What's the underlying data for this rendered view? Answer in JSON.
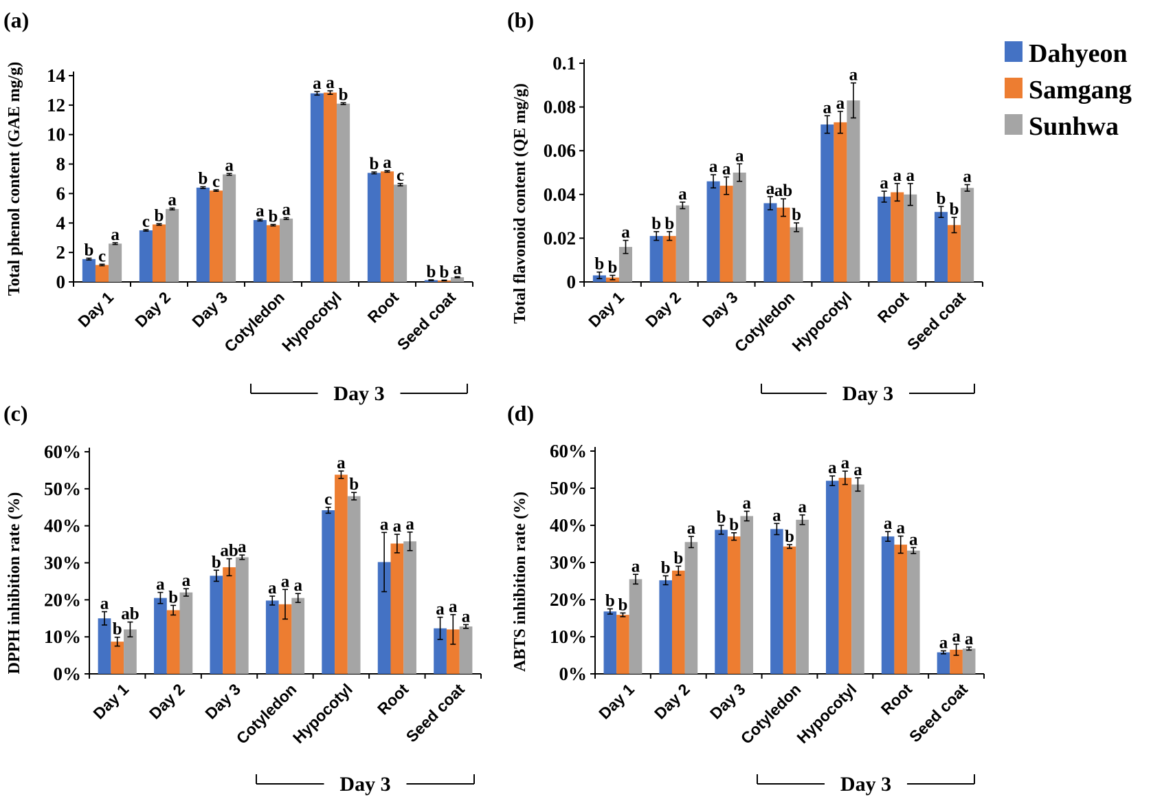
{
  "legend": [
    {
      "name": "Dahyeon",
      "color": "#4472C4"
    },
    {
      "name": "Samgang",
      "color": "#ED7D31"
    },
    {
      "name": "Sunhwa",
      "color": "#A5A5A5"
    }
  ],
  "chart_data": [
    {
      "panel": "(a)",
      "type": "bar",
      "ylabel": "Total phenol content (GAE mg/g)",
      "ylim": [
        0,
        14
      ],
      "yticks": [
        "0",
        "2",
        "4",
        "6",
        "8",
        "10",
        "12",
        "14"
      ],
      "categories": [
        "Day 1",
        "Day 2",
        "Day 3",
        "Cotyledon",
        "Hypocotyl",
        "Root",
        "Seed coat"
      ],
      "group_label": "Day 3",
      "series": [
        {
          "name": "Dahyeon",
          "values": [
            1.55,
            3.5,
            6.4,
            4.2,
            12.8,
            7.4,
            0.12
          ],
          "errors": [
            0.06,
            0.05,
            0.06,
            0.06,
            0.12,
            0.06,
            0.02
          ],
          "letters": [
            "b",
            "c",
            "b",
            "a",
            "a",
            "b",
            "b"
          ]
        },
        {
          "name": "Samgang",
          "values": [
            1.15,
            3.9,
            6.2,
            3.85,
            12.85,
            7.5,
            0.1
          ],
          "errors": [
            0.05,
            0.05,
            0.05,
            0.05,
            0.12,
            0.05,
            0.02
          ],
          "letters": [
            "c",
            "b",
            "c",
            "b",
            "a",
            "a",
            "b"
          ]
        },
        {
          "name": "Sunhwa",
          "values": [
            2.6,
            4.95,
            7.3,
            4.3,
            12.1,
            6.6,
            0.32
          ],
          "errors": [
            0.06,
            0.06,
            0.06,
            0.06,
            0.06,
            0.08,
            0.03
          ],
          "letters": [
            "a",
            "a",
            "a",
            "a",
            "b",
            "c",
            "a"
          ]
        }
      ]
    },
    {
      "panel": "(b)",
      "type": "bar",
      "ylabel": "Total flavonoid content (QE mg/g)",
      "ylim": [
        0,
        0.1
      ],
      "yticks": [
        "0",
        "0.02",
        "0.04",
        "0.06",
        "0.08",
        "0.1"
      ],
      "categories": [
        "Day 1",
        "Day 2",
        "Day 3",
        "Cotyledon",
        "Hypocotyl",
        "Root",
        "Seed coat"
      ],
      "group_label": "Day 3",
      "series": [
        {
          "name": "Dahyeon",
          "values": [
            0.003,
            0.021,
            0.046,
            0.036,
            0.072,
            0.039,
            0.032
          ],
          "errors": [
            0.0015,
            0.002,
            0.003,
            0.003,
            0.004,
            0.0025,
            0.0025
          ],
          "letters": [
            "b",
            "b",
            "a",
            "a",
            "a",
            "a",
            "b"
          ]
        },
        {
          "name": "Samgang",
          "values": [
            0.002,
            0.021,
            0.044,
            0.034,
            0.073,
            0.041,
            0.026
          ],
          "errors": [
            0.001,
            0.002,
            0.004,
            0.004,
            0.005,
            0.004,
            0.0035
          ],
          "letters": [
            "b",
            "b",
            "a",
            "ab",
            "a",
            "a",
            "b"
          ]
        },
        {
          "name": "Sunhwa",
          "values": [
            0.016,
            0.035,
            0.05,
            0.025,
            0.083,
            0.04,
            0.043
          ],
          "errors": [
            0.003,
            0.0015,
            0.004,
            0.002,
            0.008,
            0.005,
            0.0015
          ],
          "letters": [
            "a",
            "a",
            "a",
            "b",
            "a",
            "a",
            "a"
          ]
        }
      ]
    },
    {
      "panel": "(c)",
      "type": "bar",
      "ylabel": "DPPH inhibition rate (%)",
      "ylim": [
        0,
        60
      ],
      "yticks": [
        "0%",
        "10%",
        "20%",
        "30%",
        "40%",
        "50%",
        "60%"
      ],
      "categories": [
        "Day 1",
        "Day 2",
        "Day 3",
        "Cotyledon",
        "Hypocotyl",
        "Root",
        "Seed coat"
      ],
      "group_label": "Day 3",
      "series": [
        {
          "name": "Dahyeon",
          "values": [
            15,
            20.5,
            26.5,
            19.8,
            44.2,
            30.2,
            12.3
          ],
          "errors": [
            1.8,
            1.5,
            1.5,
            1.2,
            0.8,
            8.0,
            3.0
          ],
          "letters": [
            "a",
            "a",
            "b",
            "a",
            "c",
            "a",
            "a"
          ]
        },
        {
          "name": "Samgang",
          "values": [
            8.7,
            17.2,
            28.8,
            18.8,
            53.8,
            35.2,
            12.0
          ],
          "errors": [
            1.2,
            1.3,
            2.3,
            4.0,
            1.0,
            2.5,
            4.0
          ],
          "letters": [
            "b",
            "b",
            "ab",
            "a",
            "a",
            "a",
            "a"
          ]
        },
        {
          "name": "Sunhwa",
          "values": [
            12.0,
            22.0,
            31.5,
            20.5,
            48.0,
            35.8,
            12.8
          ],
          "errors": [
            2.0,
            1.0,
            0.6,
            1.2,
            1.0,
            2.5,
            0.5
          ],
          "letters": [
            "ab",
            "a",
            "a",
            "a",
            "b",
            "a",
            "a"
          ]
        }
      ]
    },
    {
      "panel": "(d)",
      "type": "bar",
      "ylabel": "ABTS inhibition rate (%)",
      "ylim": [
        0,
        60
      ],
      "yticks": [
        "0%",
        "10%",
        "20%",
        "30%",
        "40%",
        "50%",
        "60%"
      ],
      "categories": [
        "Day 1",
        "Day 2",
        "Day 3",
        "Cotyledon",
        "Hypocotyl",
        "Root",
        "Seed coat"
      ],
      "group_label": "Day 3",
      "series": [
        {
          "name": "Dahyeon",
          "values": [
            16.8,
            25.2,
            38.8,
            39.0,
            52.0,
            37.0,
            5.8
          ],
          "errors": [
            0.7,
            1.2,
            1.2,
            1.5,
            1.3,
            1.3,
            0.4
          ],
          "letters": [
            "b",
            "b",
            "b",
            "a",
            "a",
            "a",
            "a"
          ]
        },
        {
          "name": "Samgang",
          "values": [
            15.9,
            27.8,
            37.0,
            34.3,
            52.8,
            34.8,
            6.5
          ],
          "errors": [
            0.5,
            1.2,
            1.0,
            0.5,
            1.8,
            2.3,
            1.5
          ],
          "letters": [
            "b",
            "b",
            "b",
            "b",
            "a",
            "a",
            "a"
          ]
        },
        {
          "name": "Sunhwa",
          "values": [
            25.5,
            35.5,
            42.5,
            41.5,
            51.0,
            33.2,
            6.8
          ],
          "errors": [
            1.3,
            1.5,
            1.3,
            1.3,
            1.8,
            0.8,
            0.4
          ],
          "letters": [
            "a",
            "a",
            "a",
            "a",
            "a",
            "a",
            "a"
          ]
        }
      ]
    }
  ]
}
